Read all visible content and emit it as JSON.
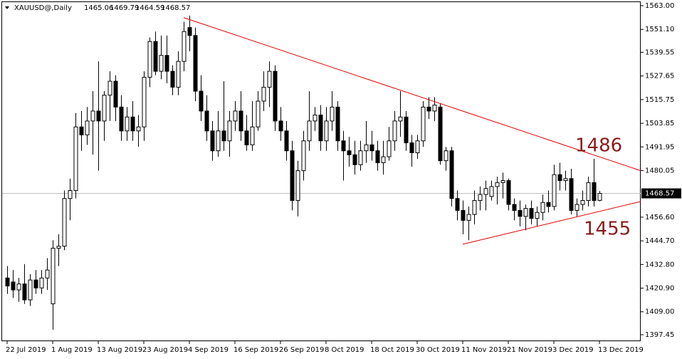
{
  "chart_data": {
    "type": "candlestick",
    "title": "XAUUSD@,Daily",
    "categories": [
      "22 Jul 2019",
      null,
      null,
      null,
      null,
      null,
      null,
      null,
      "1 Aug 2019",
      null,
      null,
      null,
      null,
      null,
      null,
      null,
      "13 Aug 2019",
      null,
      null,
      null,
      null,
      null,
      null,
      null,
      "23 Aug 2019",
      null,
      null,
      null,
      null,
      null,
      null,
      null,
      "4 Sep 2019",
      null,
      null,
      null,
      null,
      null,
      null,
      null,
      "16 Sep 2019",
      null,
      null,
      null,
      null,
      null,
      null,
      null,
      "26 Sep 2019",
      null,
      null,
      null,
      null,
      null,
      null,
      null,
      "8 Oct 2019",
      null,
      null,
      null,
      null,
      null,
      null,
      null,
      "18 Oct 2019",
      null,
      null,
      null,
      null,
      null,
      null,
      null,
      "30 Oct 2019",
      null,
      null,
      null,
      null,
      null,
      null,
      null,
      "11 Nov 2019",
      null,
      null,
      null,
      null,
      null,
      null,
      null,
      "21 Nov 2019",
      null,
      null,
      null,
      null,
      null,
      null,
      null,
      "3 Dec 2019",
      null,
      null,
      null,
      null,
      null,
      null,
      null,
      "13 Dec 2019"
    ],
    "open": [
      1426,
      1424,
      1420,
      1423,
      1415,
      1425,
      1421,
      1426,
      1413,
      1441,
      1442,
      1466,
      1470,
      1502,
      1498,
      1505,
      1510,
      1505,
      1518,
      1525,
      1512,
      1500,
      1507,
      1500,
      1502,
      1527,
      1545,
      1530,
      1538,
      1530,
      1522,
      1535,
      1552,
      1548,
      1520,
      1510,
      1500,
      1490,
      1500,
      1495,
      1505,
      1510,
      1500,
      1493,
      1502,
      1515,
      1522,
      1530,
      1505,
      1500,
      1490,
      1465,
      1480,
      1495,
      1505,
      1508,
      1495,
      1505,
      1512,
      1495,
      1490,
      1488,
      1483,
      1490,
      1493,
      1490,
      1484,
      1487,
      1495,
      1505,
      1507,
      1494,
      1489,
      1495,
      1512,
      1510,
      1512,
      1485,
      1490,
      1466,
      1460,
      1455,
      1458,
      1465,
      1468,
      1467,
      1472,
      1474,
      1475,
      1463,
      1460,
      1457,
      1461,
      1456,
      1459,
      1464,
      1462,
      1478,
      1475,
      1476,
      1460,
      1463,
      1465,
      1474,
      1465.06
    ],
    "high": [
      1432,
      1430,
      1426,
      1433,
      1428,
      1430,
      1430,
      1436,
      1445,
      1448,
      1470,
      1476,
      1509,
      1510,
      1512,
      1520,
      1535,
      1520,
      1530,
      1528,
      1518,
      1512,
      1515,
      1508,
      1530,
      1547,
      1550,
      1548,
      1548,
      1533,
      1540,
      1555,
      1558,
      1552,
      1528,
      1518,
      1505,
      1510,
      1525,
      1510,
      1515,
      1520,
      1508,
      1515,
      1520,
      1530,
      1535,
      1533,
      1512,
      1505,
      1495,
      1485,
      1500,
      1520,
      1512,
      1513,
      1512,
      1520,
      1515,
      1500,
      1497,
      1495,
      1495,
      1505,
      1500,
      1495,
      1495,
      1502,
      1510,
      1520,
      1510,
      1498,
      1498,
      1515,
      1517,
      1517,
      1514,
      1492,
      1492,
      1470,
      1465,
      1462,
      1470,
      1472,
      1475,
      1475,
      1477,
      1479,
      1476,
      1466,
      1465,
      1463,
      1465,
      1462,
      1468,
      1470,
      1483,
      1484,
      1480,
      1481,
      1466,
      1470,
      1477,
      1486,
      1469.79
    ],
    "low": [
      1418,
      1416,
      1414,
      1413,
      1412,
      1418,
      1418,
      1420,
      1400,
      1432,
      1440,
      1455,
      1466,
      1490,
      1493,
      1488,
      1480,
      1495,
      1505,
      1505,
      1495,
      1495,
      1495,
      1492,
      1495,
      1522,
      1528,
      1526,
      1524,
      1518,
      1518,
      1530,
      1540,
      1515,
      1505,
      1495,
      1485,
      1487,
      1490,
      1487,
      1500,
      1495,
      1490,
      1490,
      1500,
      1510,
      1512,
      1500,
      1495,
      1485,
      1460,
      1457,
      1475,
      1490,
      1500,
      1490,
      1490,
      1500,
      1490,
      1475,
      1482,
      1478,
      1480,
      1484,
      1485,
      1480,
      1478,
      1485,
      1490,
      1497,
      1490,
      1482,
      1486,
      1492,
      1506,
      1505,
      1483,
      1480,
      1462,
      1455,
      1448,
      1445,
      1453,
      1460,
      1460,
      1465,
      1463,
      1466,
      1460,
      1455,
      1452,
      1450,
      1453,
      1452,
      1455,
      1459,
      1460,
      1470,
      1470,
      1458,
      1457,
      1460,
      1462,
      1462,
      1464.59
    ],
    "close": [
      1422,
      1420,
      1423,
      1415,
      1425,
      1421,
      1426,
      1430,
      1441,
      1442,
      1466,
      1470,
      1502,
      1498,
      1505,
      1510,
      1505,
      1518,
      1525,
      1512,
      1500,
      1507,
      1500,
      1502,
      1527,
      1545,
      1530,
      1538,
      1530,
      1522,
      1535,
      1550,
      1548,
      1520,
      1510,
      1500,
      1490,
      1500,
      1495,
      1505,
      1510,
      1500,
      1493,
      1502,
      1515,
      1522,
      1530,
      1505,
      1500,
      1490,
      1465,
      1480,
      1495,
      1505,
      1508,
      1495,
      1505,
      1512,
      1495,
      1490,
      1488,
      1483,
      1490,
      1493,
      1490,
      1484,
      1487,
      1495,
      1505,
      1507,
      1494,
      1489,
      1495,
      1512,
      1510,
      1513,
      1485,
      1490,
      1466,
      1460,
      1455,
      1458,
      1465,
      1468,
      1471,
      1472,
      1474,
      1475,
      1463,
      1460,
      1457,
      1461,
      1456,
      1459,
      1464,
      1462,
      1478,
      1475,
      1476,
      1460,
      1463,
      1465,
      1474,
      1465,
      1468.57
    ],
    "ylim": [
      1393.85,
      1565.15
    ],
    "yticks": [
      {
        "value": 1563,
        "label": "1563.00"
      },
      {
        "value": 1551.1,
        "label": "1551.10"
      },
      {
        "value": 1539.55,
        "label": "1539.55"
      },
      {
        "value": 1527.65,
        "label": "1527.65"
      },
      {
        "value": 1515.75,
        "label": "1515.75"
      },
      {
        "value": 1503.85,
        "label": "1503.85"
      },
      {
        "value": 1491.95,
        "label": "1491.95"
      },
      {
        "value": 1480.05,
        "label": "1480.05"
      },
      {
        "value": 1456.6,
        "label": "1456.60"
      },
      {
        "value": 1444.7,
        "label": "1444.70"
      },
      {
        "value": 1432.8,
        "label": "1432.80"
      },
      {
        "value": 1420.9,
        "label": "1420.90"
      },
      {
        "value": 1409,
        "label": "1409.00"
      },
      {
        "value": 1397.45,
        "label": "1397.45"
      }
    ],
    "trendlines": [
      {
        "color": "#e00000",
        "x": [
          31,
          111.25
        ],
        "y": [
          1557,
          1480
        ]
      },
      {
        "color": "#e00000",
        "x": [
          80,
          111.25
        ],
        "y": [
          1443,
          1464.5
        ]
      }
    ],
    "annotations": [
      "1486",
      "1455"
    ],
    "annotation_color": "#8b1a1a",
    "up_color": "#ffffff",
    "down_color": "#000000"
  }
}
